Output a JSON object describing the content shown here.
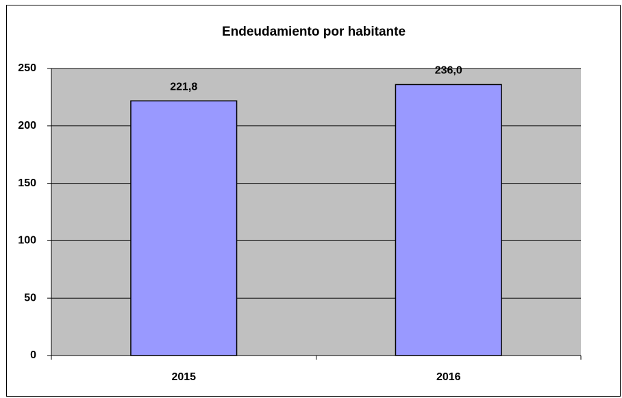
{
  "chart_data": {
    "type": "bar",
    "title": "Endeudamiento por habitante",
    "categories": [
      "2015",
      "2016"
    ],
    "values": [
      221.8,
      236.0
    ],
    "value_labels": [
      "221,8",
      "236,0"
    ],
    "color": "#9999ff",
    "ylim": [
      0,
      250
    ],
    "yticks": [
      0,
      50,
      100,
      150,
      200,
      250
    ],
    "grid": true
  }
}
